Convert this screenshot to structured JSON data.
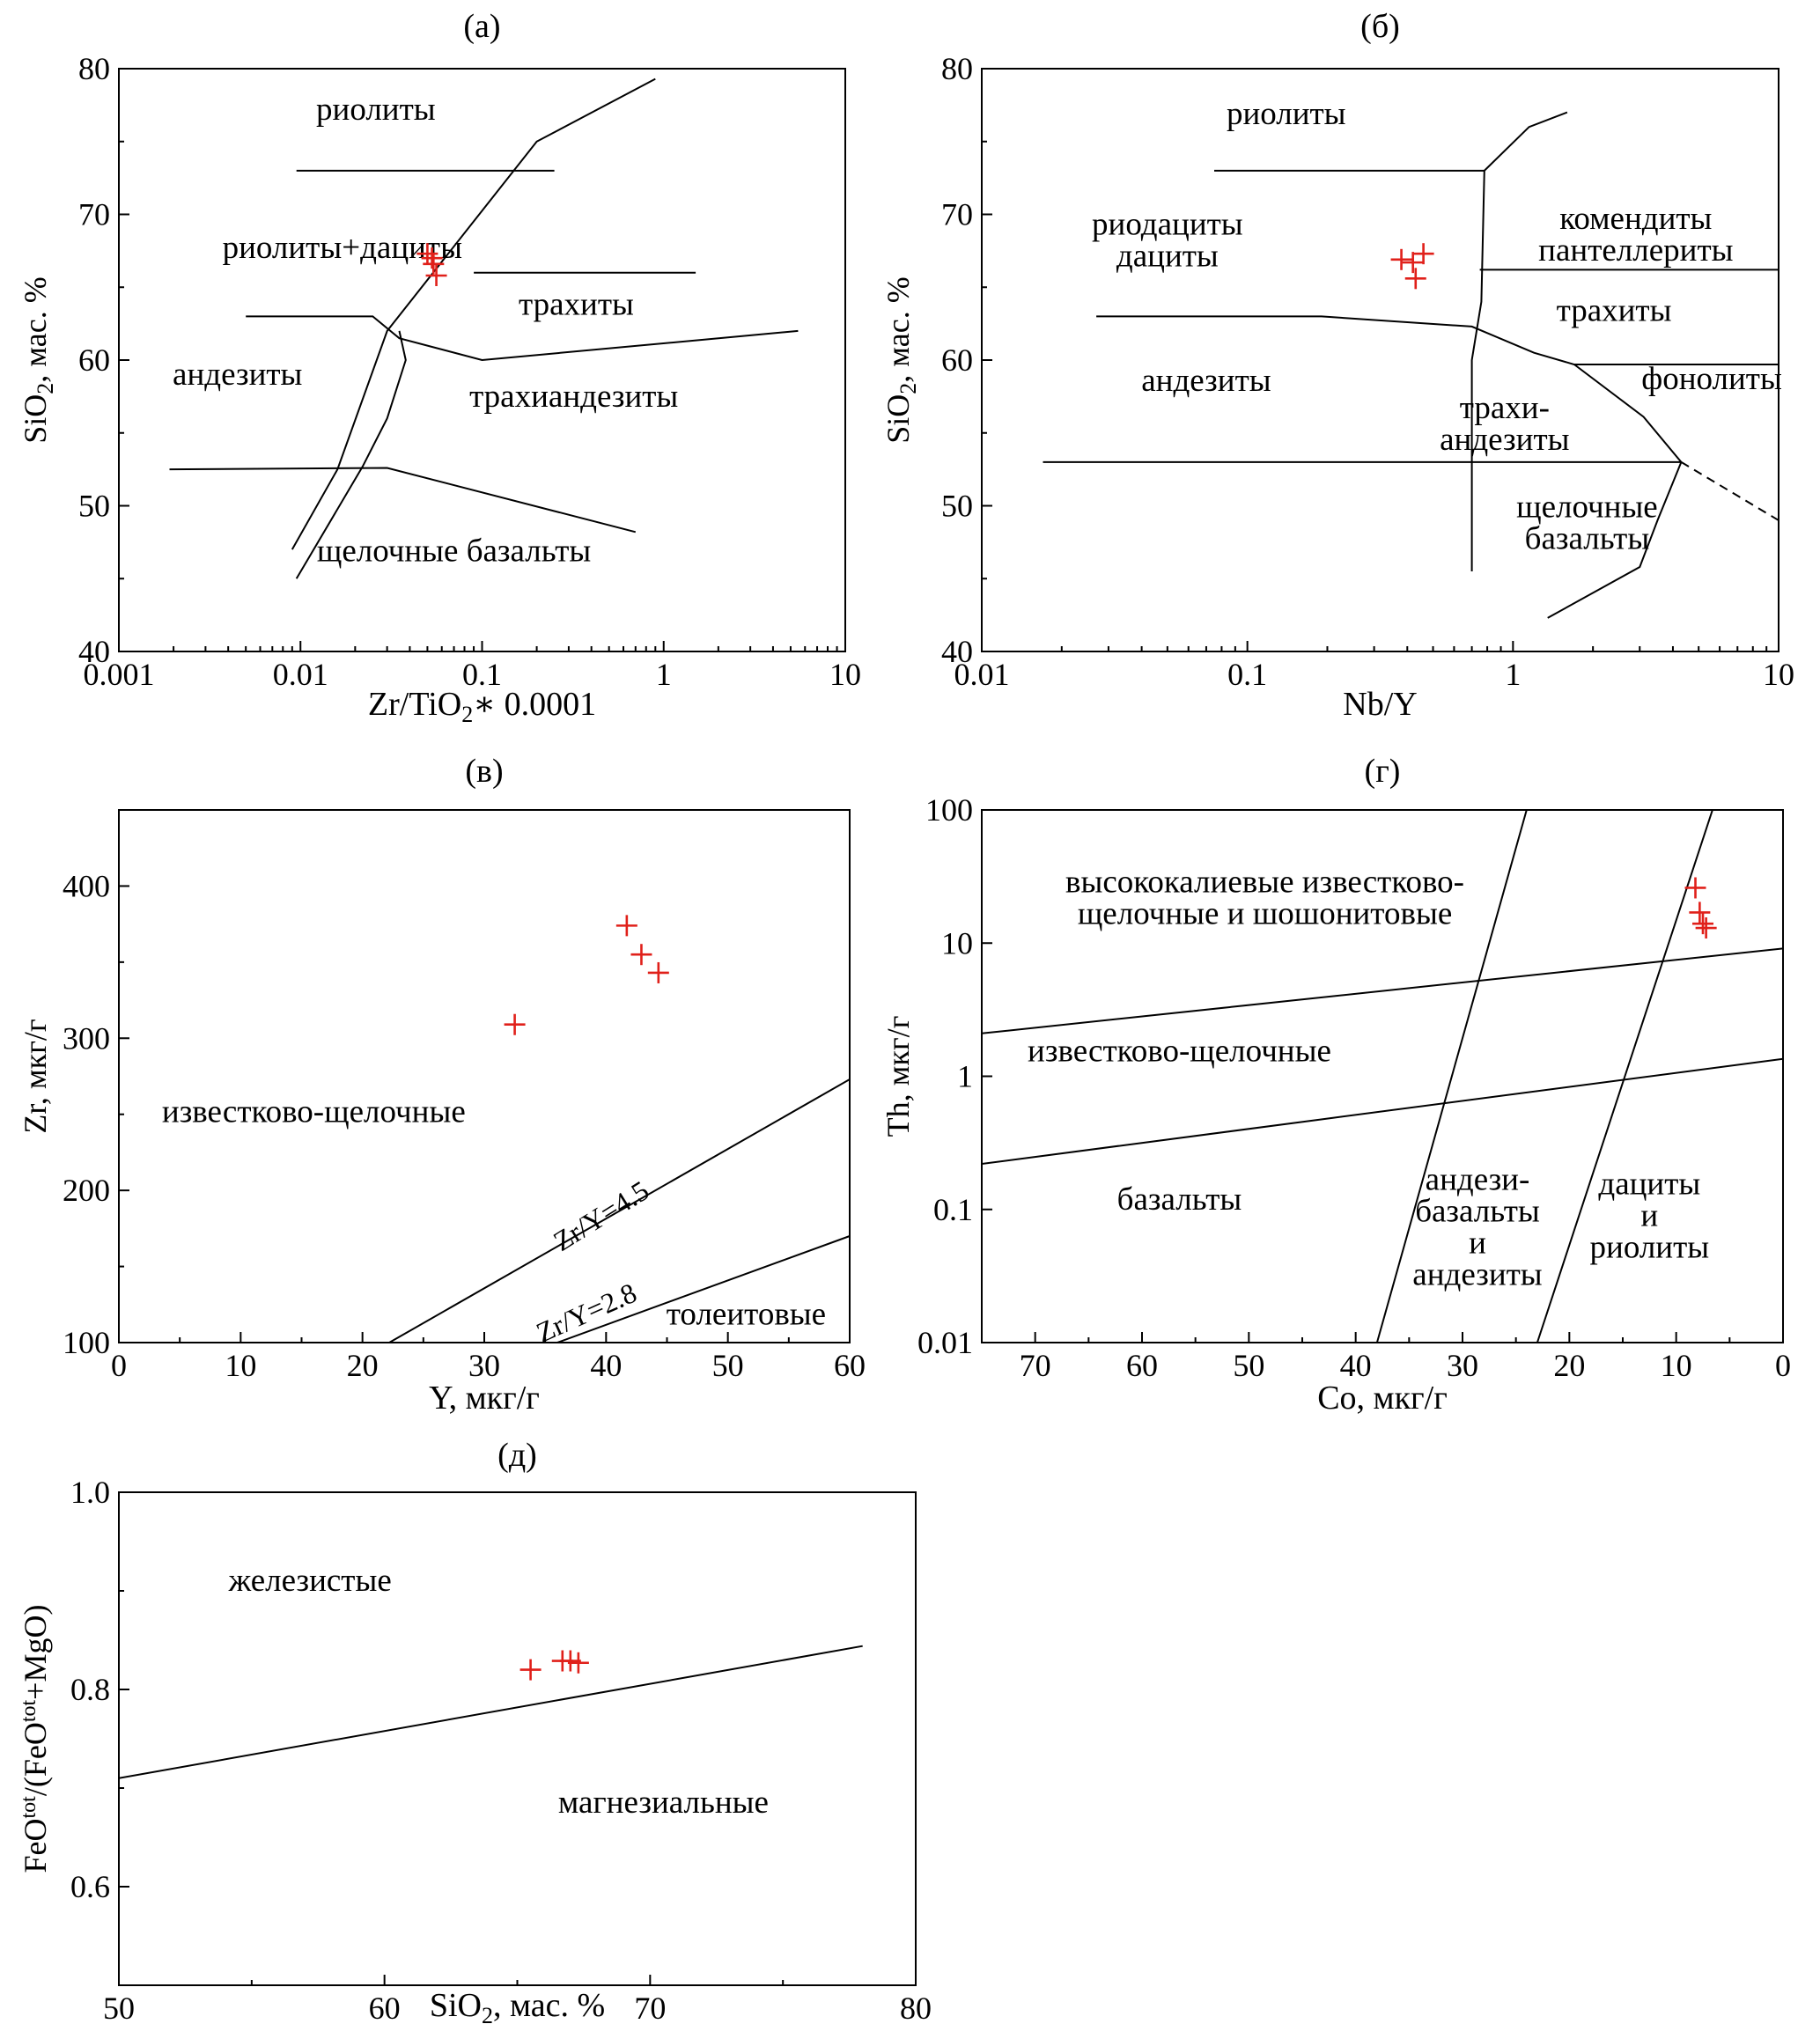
{
  "chart_data": [
    {
      "id": "a",
      "type": "scatter",
      "panel_label": "(а)",
      "xlabel": {
        "main": "Zr/TiO",
        "sub": "2",
        "rest": "∗ 0.0001"
      },
      "ylabel": {
        "pre": "SiO",
        "sub": "2",
        "post": ", мас. %"
      },
      "x_scale": "log",
      "xlim": [
        0.001,
        10
      ],
      "ylim": [
        40,
        80
      ],
      "x_ticks": [
        {
          "v": 0.001,
          "label": "0.001"
        },
        {
          "v": 0.01,
          "label": "0.01"
        },
        {
          "v": 0.1,
          "label": "0.1"
        },
        {
          "v": 1,
          "label": "1"
        },
        {
          "v": 10,
          "label": "10"
        }
      ],
      "y_ticks": [
        {
          "v": 40,
          "label": "40"
        },
        {
          "v": 50,
          "label": "50"
        },
        {
          "v": 60,
          "label": "60"
        },
        {
          "v": 70,
          "label": "70"
        },
        {
          "v": 80,
          "label": "80"
        }
      ],
      "fields": [
        {
          "name": "rhyolite",
          "lines": [
            "риолиты"
          ],
          "x": 0.026,
          "y": 76.5
        },
        {
          "name": "rhyodacite",
          "lines": [
            "риолиты+дациты"
          ],
          "x": 0.017,
          "y": 67.0
        },
        {
          "name": "trachyte",
          "lines": [
            "трахиты"
          ],
          "x": 0.33,
          "y": 63.1
        },
        {
          "name": "andesite",
          "lines": [
            "андезиты"
          ],
          "x": 0.0045,
          "y": 58.3
        },
        {
          "name": "trachyandesite",
          "lines": [
            "трахиандезиты"
          ],
          "x": 0.32,
          "y": 56.8
        },
        {
          "name": "alkali-basalt",
          "lines": [
            "щелочные базальты"
          ],
          "x": 0.07,
          "y": 46.2
        }
      ],
      "boundaries": [
        {
          "points": [
            [
              0.009,
              47
            ],
            [
              0.016,
              52.5
            ],
            [
              0.03,
              62
            ],
            [
              0.2,
              75
            ],
            [
              0.9,
              79.3
            ]
          ]
        },
        {
          "points": [
            [
              0.0095,
              45
            ],
            [
              0.022,
              52.7
            ],
            [
              0.03,
              56
            ],
            [
              0.038,
              60
            ],
            [
              0.035,
              62
            ]
          ]
        },
        {
          "points": [
            [
              0.0095,
              73
            ],
            [
              0.25,
              73
            ]
          ]
        },
        {
          "points": [
            [
              0.09,
              66
            ],
            [
              1.5,
              66
            ]
          ]
        },
        {
          "points": [
            [
              0.005,
              63
            ],
            [
              0.025,
              63
            ],
            [
              0.035,
              61.5
            ],
            [
              0.1,
              60
            ],
            [
              5.5,
              62
            ]
          ]
        },
        {
          "points": [
            [
              0.0019,
              52.5
            ],
            [
              0.03,
              52.6
            ],
            [
              0.7,
              48.2
            ]
          ]
        }
      ],
      "points": [
        [
          0.05,
          67.3
        ],
        [
          0.053,
          67.0
        ],
        [
          0.054,
          66.6
        ],
        [
          0.056,
          65.8
        ]
      ]
    },
    {
      "id": "b",
      "type": "scatter",
      "panel_label": "(б)",
      "xlabel": {
        "main": "Nb/Y",
        "sub": "",
        "rest": ""
      },
      "ylabel": {
        "pre": "SiO",
        "sub": "2",
        "post": ", мас. %"
      },
      "x_scale": "log",
      "xlim": [
        0.01,
        10
      ],
      "ylim": [
        40,
        80
      ],
      "x_ticks": [
        {
          "v": 0.01,
          "label": "0.01"
        },
        {
          "v": 0.1,
          "label": "0.1"
        },
        {
          "v": 1,
          "label": "1"
        },
        {
          "v": 10,
          "label": "10"
        }
      ],
      "y_ticks": [
        {
          "v": 40,
          "label": "40"
        },
        {
          "v": 50,
          "label": "50"
        },
        {
          "v": 60,
          "label": "60"
        },
        {
          "v": 70,
          "label": "70"
        },
        {
          "v": 80,
          "label": "80"
        }
      ],
      "fields": [
        {
          "name": "rhyolite",
          "lines": [
            "риолиты"
          ],
          "x": 0.14,
          "y": 76.2
        },
        {
          "name": "rhyodacite",
          "lines": [
            "риодациты",
            "дациты"
          ],
          "x": 0.05,
          "y": 68.6
        },
        {
          "name": "comendite",
          "lines": [
            "комендиты",
            "пантеллериты"
          ],
          "x": 2.9,
          "y": 69.0
        },
        {
          "name": "trachyte",
          "lines": [
            "трахиты"
          ],
          "x": 2.4,
          "y": 62.7
        },
        {
          "name": "phonolite",
          "lines": [
            "фонолиты"
          ],
          "x": 5.6,
          "y": 58.0
        },
        {
          "name": "andesite",
          "lines": [
            "андезиты"
          ],
          "x": 0.07,
          "y": 57.9
        },
        {
          "name": "trachyandesite",
          "lines": [
            "трахи-",
            "андезиты"
          ],
          "x": 0.93,
          "y": 56.0
        },
        {
          "name": "alkali-basalt",
          "lines": [
            "щелочные",
            "базальты"
          ],
          "x": 1.9,
          "y": 49.2
        }
      ],
      "boundaries": [
        {
          "points": [
            [
              0.075,
              73
            ],
            [
              0.78,
              73
            ],
            [
              1.15,
              76
            ],
            [
              1.6,
              77
            ]
          ]
        },
        {
          "points": [
            [
              0.78,
              73
            ],
            [
              0.76,
              64
            ],
            [
              0.7,
              60
            ],
            [
              0.7,
              45.5
            ]
          ]
        },
        {
          "points": [
            [
              0.75,
              66.2
            ],
            [
              10,
              66.2
            ]
          ]
        },
        {
          "points": [
            [
              0.027,
              63
            ],
            [
              0.19,
              63
            ],
            [
              0.7,
              62.3
            ],
            [
              1.2,
              60.5
            ],
            [
              1.7,
              59.7
            ],
            [
              3.1,
              56.1
            ],
            [
              4.3,
              53
            ]
          ]
        },
        {
          "points": [
            [
              1.7,
              59.7
            ],
            [
              10,
              59.7
            ]
          ]
        },
        {
          "points": [
            [
              0.017,
              53
            ],
            [
              4.3,
              53
            ]
          ]
        },
        {
          "points": [
            [
              4.3,
              53
            ],
            [
              3.5,
              49
            ],
            [
              3,
              45.8
            ],
            [
              1.35,
              42.3
            ]
          ]
        },
        {
          "points": [
            [
              4.3,
              53
            ],
            [
              10,
              49
            ]
          ],
          "dashed": true
        }
      ],
      "points": [
        [
          0.38,
          66.9
        ],
        [
          0.42,
          66.7
        ],
        [
          0.46,
          67.3
        ],
        [
          0.43,
          65.6
        ]
      ]
    },
    {
      "id": "c",
      "type": "scatter",
      "panel_label": "(в)",
      "xlabel": {
        "main": "Y, мкг/г",
        "sub": "",
        "rest": ""
      },
      "ylabel": {
        "pre": "Zr, мкг/г",
        "sub": "",
        "post": ""
      },
      "x_scale": "linear",
      "xlim": [
        0,
        60
      ],
      "ylim": [
        100,
        450
      ],
      "x_ticks": [
        {
          "v": 0,
          "label": "0"
        },
        {
          "v": 10,
          "label": "10"
        },
        {
          "v": 20,
          "label": "20"
        },
        {
          "v": 30,
          "label": "30"
        },
        {
          "v": 40,
          "label": "40"
        },
        {
          "v": 50,
          "label": "50"
        },
        {
          "v": 60,
          "label": "60"
        }
      ],
      "y_ticks": [
        {
          "v": 100,
          "label": "100"
        },
        {
          "v": 200,
          "label": "200"
        },
        {
          "v": 300,
          "label": "300"
        },
        {
          "v": 400,
          "label": "400"
        }
      ],
      "fields": [
        {
          "name": "calc-alkaline",
          "lines": [
            "известково-щелочные"
          ],
          "x": 16,
          "y": 245
        },
        {
          "name": "tholeiitic",
          "lines": [
            "толеитовые"
          ],
          "x": 51.5,
          "y": 112
        }
      ],
      "line_labels": [
        {
          "name": "ratio-4.5",
          "text": "Zr/Y=4.5",
          "x": 40,
          "y": 178,
          "angle": -32
        },
        {
          "name": "ratio-2.8",
          "text": "Zr/Y=2.8",
          "x": 38.7,
          "y": 114,
          "angle": -24
        }
      ],
      "boundaries": [
        {
          "points": [
            [
              22.2,
              100
            ],
            [
              60,
              273
            ]
          ]
        },
        {
          "points": [
            [
              36,
              100
            ],
            [
              60,
              170
            ]
          ]
        }
      ],
      "points": [
        [
          41.7,
          374
        ],
        [
          42.9,
          355
        ],
        [
          44.3,
          343
        ],
        [
          32.5,
          309
        ]
      ]
    },
    {
      "id": "d",
      "type": "scatter",
      "panel_label": "(г)",
      "xlabel": {
        "main": "Co, мкг/г",
        "sub": "",
        "rest": ""
      },
      "ylabel": {
        "pre": "Th, мкг/г",
        "sub": "",
        "post": ""
      },
      "x_scale": "linear",
      "x_reversed": true,
      "y_scale": "log",
      "xlim": [
        75,
        0
      ],
      "ylim": [
        0.01,
        100
      ],
      "x_ticks": [
        {
          "v": 70,
          "label": "70"
        },
        {
          "v": 60,
          "label": "60"
        },
        {
          "v": 50,
          "label": "50"
        },
        {
          "v": 40,
          "label": "40"
        },
        {
          "v": 30,
          "label": "30"
        },
        {
          "v": 20,
          "label": "20"
        },
        {
          "v": 10,
          "label": "10"
        },
        {
          "v": 0,
          "label": "0"
        }
      ],
      "y_ticks": [
        {
          "v": 0.01,
          "label": "0.01"
        },
        {
          "v": 0.1,
          "label": "0.1"
        },
        {
          "v": 1,
          "label": "1"
        },
        {
          "v": 10,
          "label": "10"
        },
        {
          "v": 100,
          "label": "100"
        }
      ],
      "fields": [
        {
          "name": "high-k-shoshonitic",
          "lines": [
            "высококалиевые известково-",
            "щелочные и шошонитовые"
          ],
          "x": 48.5,
          "y": 24
        },
        {
          "name": "calc-alkaline",
          "lines": [
            "известково-щелочные"
          ],
          "x": 56.5,
          "y": 1.3
        },
        {
          "name": "basalt",
          "lines": [
            "базальты"
          ],
          "x": 56.5,
          "y": 0.1
        },
        {
          "name": "basaltic-andesite",
          "lines": [
            "андези-",
            "базальты",
            "и",
            "андезиты"
          ],
          "x": 28.6,
          "y": 0.14
        },
        {
          "name": "dacite-rhyolite",
          "lines": [
            "дациты",
            "и",
            "риолиты"
          ],
          "x": 12.5,
          "y": 0.13
        }
      ],
      "boundaries": [
        {
          "points": [
            [
              75,
              2.1
            ],
            [
              0,
              9.1
            ]
          ]
        },
        {
          "points": [
            [
              75,
              0.22
            ],
            [
              0,
              1.35
            ]
          ]
        },
        {
          "points": [
            [
              38,
              0.01
            ],
            [
              24,
              100
            ]
          ]
        },
        {
          "points": [
            [
              23,
              0.01
            ],
            [
              6.6,
              100
            ]
          ]
        }
      ],
      "points": [
        [
          8.2,
          26
        ],
        [
          7.8,
          17
        ],
        [
          7.5,
          14
        ],
        [
          7.2,
          13
        ]
      ]
    },
    {
      "id": "e",
      "type": "scatter",
      "panel_label": "(д)",
      "xlabel": {
        "main": "SiO",
        "sub": "2",
        "rest": ", мас. %"
      },
      "ylabel": {
        "pre": "FeO",
        "sup": "tot",
        "mid": "/(FeO",
        "sup2": "tot",
        "post": "+MgO)"
      },
      "x_scale": "linear",
      "xlim": [
        50,
        80
      ],
      "ylim": [
        0.5,
        1.0
      ],
      "x_ticks": [
        {
          "v": 50,
          "label": "50"
        },
        {
          "v": 60,
          "label": "60"
        },
        {
          "v": 70,
          "label": "70"
        },
        {
          "v": 80,
          "label": "80"
        }
      ],
      "y_ticks": [
        {
          "v": 0.6,
          "label": "0.6"
        },
        {
          "v": 0.8,
          "label": "0.8"
        },
        {
          "v": 1.0,
          "label": "1.0"
        }
      ],
      "fields": [
        {
          "name": "ferroan",
          "lines": [
            "железистые"
          ],
          "x": 57.2,
          "y": 0.9
        },
        {
          "name": "magnesian",
          "lines": [
            "магнезиальные"
          ],
          "x": 70.5,
          "y": 0.675
        }
      ],
      "boundaries": [
        {
          "points": [
            [
              50,
              0.71
            ],
            [
              78,
              0.844
            ]
          ]
        }
      ],
      "points": [
        [
          65.5,
          0.82
        ],
        [
          66.7,
          0.829
        ],
        [
          67,
          0.829
        ],
        [
          67.3,
          0.827
        ]
      ]
    }
  ]
}
